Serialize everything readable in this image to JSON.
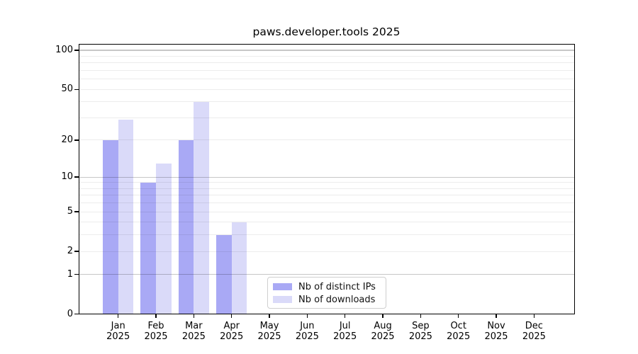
{
  "chart_data": {
    "type": "bar",
    "title": "paws.developer.tools 2025",
    "categories": [
      "Jan",
      "Feb",
      "Mar",
      "Apr",
      "May",
      "Jun",
      "Jul",
      "Aug",
      "Sep",
      "Oct",
      "Nov",
      "Dec"
    ],
    "category_year": "2025",
    "series": [
      {
        "name": "Nb of distinct IPs",
        "color": "#a9a9f5",
        "values": [
          20,
          9,
          20,
          3,
          0,
          0,
          0,
          0,
          0,
          0,
          0,
          0
        ]
      },
      {
        "name": "Nb of downloads",
        "color": "#dadaf9",
        "values": [
          29,
          13,
          40,
          4,
          0,
          0,
          0,
          0,
          0,
          0,
          0,
          0
        ]
      }
    ],
    "xlabel": "",
    "ylabel": "",
    "yscale": "log10(1+y)",
    "ylim": [
      0,
      110
    ],
    "ytick_labels": [
      "0",
      "1",
      "2",
      "5",
      "10",
      "20",
      "50",
      "100"
    ],
    "ytick_values": [
      0,
      1,
      2,
      5,
      10,
      20,
      50,
      100
    ],
    "grid_major_values": [
      1,
      10,
      100
    ],
    "grid_minor_values": [
      2,
      3,
      4,
      5,
      6,
      7,
      8,
      9,
      20,
      30,
      40,
      50,
      60,
      70,
      80,
      90
    ],
    "grid": "on",
    "legend_position": "inside lower center",
    "legend_entries": [
      "Nb of distinct IPs",
      "Nb of downloads"
    ],
    "background_color": "#ffffff",
    "spine_color": "#000000"
  }
}
